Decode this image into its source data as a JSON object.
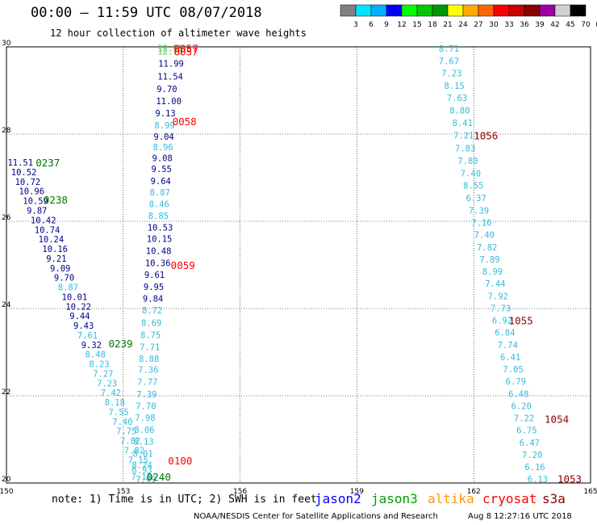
{
  "header": {
    "title": "00:00 – 11:59 UTC 08/07/2018",
    "subtitle": "12 hour collection of altimeter wave heights"
  },
  "colorbar": {
    "colors": [
      "#808080",
      "#00e5ff",
      "#00b0ff",
      "#0000ff",
      "#00ff00",
      "#00c800",
      "#009600",
      "#ffff00",
      "#ffaa00",
      "#ff6600",
      "#ff0000",
      "#c80000",
      "#8b0000",
      "#a000a0",
      "#d0d0d0",
      "#000000"
    ],
    "labels": [
      "3",
      "6",
      "9",
      "12",
      "15",
      "18",
      "21",
      "24",
      "27",
      "30",
      "33",
      "36",
      "39",
      "42",
      "45",
      "70",
      "(ft)"
    ]
  },
  "map_data": {
    "lon_range": [
      150,
      165
    ],
    "lat_range": [
      20,
      30
    ],
    "x_ticks": [
      "150",
      "153",
      "156",
      "159",
      "162",
      "165"
    ],
    "y_ticks": [
      "20",
      "22",
      "24",
      "26",
      "28",
      "30"
    ],
    "x_tick_values": [
      150,
      153,
      156,
      159,
      162,
      165
    ],
    "y_tick_values": [
      20,
      22,
      24,
      26,
      28,
      30
    ],
    "colors": {
      "navy": "#00008b",
      "cyan": "#33bbdd",
      "green": "#4ccc4c",
      "red": "#ff0000",
      "darkred": "#8b0000",
      "darkgreen": "#007700"
    },
    "wave_heights": [
      {
        "lon": 153.88,
        "lat": 29.97,
        "value": "12.93",
        "color": "green"
      },
      {
        "lon": 153.88,
        "lat": 29.9,
        "value": "12.73",
        "color": "green"
      },
      {
        "lon": 153.9,
        "lat": 29.62,
        "value": "11.99",
        "color": "navy"
      },
      {
        "lon": 153.88,
        "lat": 29.32,
        "value": "11.54",
        "color": "navy"
      },
      {
        "lon": 153.86,
        "lat": 29.04,
        "value": "9.70",
        "color": "navy"
      },
      {
        "lon": 153.84,
        "lat": 28.76,
        "value": "11.00",
        "color": "navy"
      },
      {
        "lon": 153.82,
        "lat": 28.48,
        "value": "9.13",
        "color": "navy"
      },
      {
        "lon": 153.8,
        "lat": 28.2,
        "value": "8.99",
        "color": "cyan"
      },
      {
        "lon": 153.78,
        "lat": 27.94,
        "value": "9.04",
        "color": "navy"
      },
      {
        "lon": 153.76,
        "lat": 27.7,
        "value": "8.96",
        "color": "cyan"
      },
      {
        "lon": 153.74,
        "lat": 27.45,
        "value": "9.08",
        "color": "navy"
      },
      {
        "lon": 153.72,
        "lat": 27.2,
        "value": "9.55",
        "color": "navy"
      },
      {
        "lon": 153.7,
        "lat": 26.93,
        "value": "9.64",
        "color": "navy"
      },
      {
        "lon": 153.68,
        "lat": 26.67,
        "value": "8.87",
        "color": "cyan"
      },
      {
        "lon": 153.66,
        "lat": 26.4,
        "value": "8.46",
        "color": "cyan"
      },
      {
        "lon": 153.64,
        "lat": 26.13,
        "value": "8.85",
        "color": "cyan"
      },
      {
        "lon": 153.62,
        "lat": 25.86,
        "value": "10.53",
        "color": "navy"
      },
      {
        "lon": 153.6,
        "lat": 25.6,
        "value": "10.15",
        "color": "navy"
      },
      {
        "lon": 153.58,
        "lat": 25.32,
        "value": "10.48",
        "color": "navy"
      },
      {
        "lon": 153.56,
        "lat": 25.05,
        "value": "10.36",
        "color": "navy"
      },
      {
        "lon": 153.54,
        "lat": 24.78,
        "value": "9.61",
        "color": "navy"
      },
      {
        "lon": 153.52,
        "lat": 24.5,
        "value": "9.95",
        "color": "navy"
      },
      {
        "lon": 153.5,
        "lat": 24.23,
        "value": "9.84",
        "color": "navy"
      },
      {
        "lon": 153.48,
        "lat": 23.96,
        "value": "8.72",
        "color": "cyan"
      },
      {
        "lon": 153.46,
        "lat": 23.68,
        "value": "8.69",
        "color": "cyan"
      },
      {
        "lon": 153.44,
        "lat": 23.4,
        "value": "8.75",
        "color": "cyan"
      },
      {
        "lon": 153.42,
        "lat": 23.12,
        "value": "7.71",
        "color": "cyan"
      },
      {
        "lon": 153.4,
        "lat": 22.85,
        "value": "8.88",
        "color": "cyan"
      },
      {
        "lon": 153.38,
        "lat": 22.6,
        "value": "7.36",
        "color": "cyan"
      },
      {
        "lon": 153.36,
        "lat": 22.32,
        "value": "7.77",
        "color": "cyan"
      },
      {
        "lon": 153.34,
        "lat": 22.04,
        "value": "7.39",
        "color": "cyan"
      },
      {
        "lon": 153.32,
        "lat": 21.77,
        "value": "7.70",
        "color": "cyan"
      },
      {
        "lon": 153.3,
        "lat": 21.5,
        "value": "7.98",
        "color": "cyan"
      },
      {
        "lon": 153.28,
        "lat": 21.22,
        "value": "8.06",
        "color": "cyan"
      },
      {
        "lon": 153.26,
        "lat": 20.95,
        "value": "8.13",
        "color": "cyan"
      },
      {
        "lon": 153.24,
        "lat": 20.68,
        "value": "8.01",
        "color": "cyan"
      },
      {
        "lon": 153.22,
        "lat": 20.42,
        "value": "8.24",
        "color": "cyan"
      },
      {
        "lon": 153.2,
        "lat": 20.15,
        "value": "7.13",
        "color": "cyan"
      },
      {
        "lon": 150.03,
        "lat": 27.35,
        "value": "11.51",
        "color": "navy"
      },
      {
        "lon": 150.12,
        "lat": 27.13,
        "value": "10.52",
        "color": "navy"
      },
      {
        "lon": 150.22,
        "lat": 26.91,
        "value": "10.72",
        "color": "navy"
      },
      {
        "lon": 150.32,
        "lat": 26.69,
        "value": "10.96",
        "color": "navy"
      },
      {
        "lon": 150.42,
        "lat": 26.47,
        "value": "10.59",
        "color": "navy"
      },
      {
        "lon": 150.52,
        "lat": 26.25,
        "value": "9.87",
        "color": "navy"
      },
      {
        "lon": 150.62,
        "lat": 26.03,
        "value": "10.42",
        "color": "navy"
      },
      {
        "lon": 150.72,
        "lat": 25.81,
        "value": "10.74",
        "color": "navy"
      },
      {
        "lon": 150.82,
        "lat": 25.59,
        "value": "10.24",
        "color": "navy"
      },
      {
        "lon": 150.92,
        "lat": 25.37,
        "value": "10.16",
        "color": "navy"
      },
      {
        "lon": 151.02,
        "lat": 25.15,
        "value": "9.21",
        "color": "navy"
      },
      {
        "lon": 151.12,
        "lat": 24.93,
        "value": "9.09",
        "color": "navy"
      },
      {
        "lon": 151.22,
        "lat": 24.71,
        "value": "9.70",
        "color": "navy"
      },
      {
        "lon": 151.32,
        "lat": 24.49,
        "value": "8.87",
        "color": "cyan"
      },
      {
        "lon": 151.42,
        "lat": 24.27,
        "value": "10.01",
        "color": "navy"
      },
      {
        "lon": 151.52,
        "lat": 24.05,
        "value": "10.22",
        "color": "navy"
      },
      {
        "lon": 151.62,
        "lat": 23.83,
        "value": "9.44",
        "color": "navy"
      },
      {
        "lon": 151.72,
        "lat": 23.61,
        "value": "9.43",
        "color": "navy"
      },
      {
        "lon": 151.82,
        "lat": 23.39,
        "value": "7.61",
        "color": "cyan"
      },
      {
        "lon": 151.92,
        "lat": 23.17,
        "value": "9.32",
        "color": "navy"
      },
      {
        "lon": 152.02,
        "lat": 22.95,
        "value": "8.48",
        "color": "cyan"
      },
      {
        "lon": 152.12,
        "lat": 22.73,
        "value": "8.23",
        "color": "cyan"
      },
      {
        "lon": 152.22,
        "lat": 22.51,
        "value": "7.27",
        "color": "cyan"
      },
      {
        "lon": 152.32,
        "lat": 22.29,
        "value": "7.23",
        "color": "cyan"
      },
      {
        "lon": 152.42,
        "lat": 22.07,
        "value": "7.42",
        "color": "cyan"
      },
      {
        "lon": 152.52,
        "lat": 21.85,
        "value": "8.18",
        "color": "cyan"
      },
      {
        "lon": 152.62,
        "lat": 21.63,
        "value": "7.55",
        "color": "cyan"
      },
      {
        "lon": 152.72,
        "lat": 21.41,
        "value": "7.40",
        "color": "cyan"
      },
      {
        "lon": 152.82,
        "lat": 21.19,
        "value": "7.75",
        "color": "cyan"
      },
      {
        "lon": 152.92,
        "lat": 20.97,
        "value": "7.82",
        "color": "cyan"
      },
      {
        "lon": 153.02,
        "lat": 20.75,
        "value": "7.82",
        "color": "cyan"
      },
      {
        "lon": 153.12,
        "lat": 20.53,
        "value": "7.15",
        "color": "cyan"
      },
      {
        "lon": 153.22,
        "lat": 20.31,
        "value": "6.93",
        "color": "cyan"
      },
      {
        "lon": 153.32,
        "lat": 20.09,
        "value": "7.09",
        "color": "cyan"
      },
      {
        "lon": 161.1,
        "lat": 29.96,
        "value": "8.71",
        "color": "cyan"
      },
      {
        "lon": 161.1,
        "lat": 29.68,
        "value": "7.67",
        "color": "cyan"
      },
      {
        "lon": 161.17,
        "lat": 29.4,
        "value": "7.23",
        "color": "cyan"
      },
      {
        "lon": 161.24,
        "lat": 29.11,
        "value": "8.15",
        "color": "cyan"
      },
      {
        "lon": 161.31,
        "lat": 28.83,
        "value": "7.63",
        "color": "cyan"
      },
      {
        "lon": 161.38,
        "lat": 28.55,
        "value": "8.80",
        "color": "cyan"
      },
      {
        "lon": 161.45,
        "lat": 28.26,
        "value": "8.41",
        "color": "cyan"
      },
      {
        "lon": 161.48,
        "lat": 27.97,
        "value": "7.21",
        "color": "cyan"
      },
      {
        "lon": 161.52,
        "lat": 27.68,
        "value": "7.83",
        "color": "cyan"
      },
      {
        "lon": 161.59,
        "lat": 27.39,
        "value": "7.80",
        "color": "cyan"
      },
      {
        "lon": 161.66,
        "lat": 27.1,
        "value": "7.40",
        "color": "cyan"
      },
      {
        "lon": 161.73,
        "lat": 26.82,
        "value": "8.55",
        "color": "cyan"
      },
      {
        "lon": 161.8,
        "lat": 26.54,
        "value": "6.37",
        "color": "cyan"
      },
      {
        "lon": 161.87,
        "lat": 26.25,
        "value": "7.39",
        "color": "cyan"
      },
      {
        "lon": 161.94,
        "lat": 25.97,
        "value": "7.10",
        "color": "cyan"
      },
      {
        "lon": 162.01,
        "lat": 25.69,
        "value": "7.40",
        "color": "cyan"
      },
      {
        "lon": 162.08,
        "lat": 25.41,
        "value": "7.82",
        "color": "cyan"
      },
      {
        "lon": 162.15,
        "lat": 25.13,
        "value": "7.89",
        "color": "cyan"
      },
      {
        "lon": 162.22,
        "lat": 24.85,
        "value": "8.99",
        "color": "cyan"
      },
      {
        "lon": 162.29,
        "lat": 24.57,
        "value": "7.44",
        "color": "cyan"
      },
      {
        "lon": 162.36,
        "lat": 24.29,
        "value": "7.92",
        "color": "cyan"
      },
      {
        "lon": 162.43,
        "lat": 24.01,
        "value": "7.73",
        "color": "cyan"
      },
      {
        "lon": 162.47,
        "lat": 23.73,
        "value": "6.92",
        "color": "cyan"
      },
      {
        "lon": 162.54,
        "lat": 23.45,
        "value": "6.84",
        "color": "cyan"
      },
      {
        "lon": 162.61,
        "lat": 23.17,
        "value": "7.74",
        "color": "cyan"
      },
      {
        "lon": 162.68,
        "lat": 22.89,
        "value": "6.41",
        "color": "cyan"
      },
      {
        "lon": 162.75,
        "lat": 22.61,
        "value": "7.05",
        "color": "cyan"
      },
      {
        "lon": 162.82,
        "lat": 22.33,
        "value": "6.79",
        "color": "cyan"
      },
      {
        "lon": 162.89,
        "lat": 22.05,
        "value": "6.48",
        "color": "cyan"
      },
      {
        "lon": 162.96,
        "lat": 21.77,
        "value": "6.20",
        "color": "cyan"
      },
      {
        "lon": 163.03,
        "lat": 21.49,
        "value": "7.22",
        "color": "cyan"
      },
      {
        "lon": 163.1,
        "lat": 21.21,
        "value": "6.75",
        "color": "cyan"
      },
      {
        "lon": 163.17,
        "lat": 20.93,
        "value": "6.47",
        "color": "cyan"
      },
      {
        "lon": 163.24,
        "lat": 20.65,
        "value": "7.20",
        "color": "cyan"
      },
      {
        "lon": 163.31,
        "lat": 20.37,
        "value": "6.16",
        "color": "cyan"
      },
      {
        "lon": 163.38,
        "lat": 20.09,
        "value": "6.13",
        "color": "cyan"
      }
    ],
    "pass_times": [
      {
        "lon": 154.3,
        "lat": 29.97,
        "value": "0057",
        "color": "red"
      },
      {
        "lon": 154.3,
        "lat": 29.9,
        "value": "0057",
        "color": "red"
      },
      {
        "lon": 154.26,
        "lat": 28.3,
        "value": "0058",
        "color": "red"
      },
      {
        "lon": 154.22,
        "lat": 25.0,
        "value": "0059",
        "color": "red"
      },
      {
        "lon": 154.15,
        "lat": 20.52,
        "value": "0100",
        "color": "red"
      },
      {
        "lon": 150.75,
        "lat": 27.35,
        "value": "0237",
        "color": "darkgreen"
      },
      {
        "lon": 150.95,
        "lat": 26.5,
        "value": "0238",
        "color": "darkgreen"
      },
      {
        "lon": 152.62,
        "lat": 23.2,
        "value": "0239",
        "color": "darkgreen"
      },
      {
        "lon": 153.6,
        "lat": 20.15,
        "value": "0240",
        "color": "darkgreen"
      },
      {
        "lon": 162.0,
        "lat": 27.97,
        "value": "1056",
        "color": "darkred"
      },
      {
        "lon": 162.9,
        "lat": 23.73,
        "value": "1055",
        "color": "darkred"
      },
      {
        "lon": 163.82,
        "lat": 21.47,
        "value": "1054",
        "color": "darkred"
      },
      {
        "lon": 164.15,
        "lat": 20.1,
        "value": "1053",
        "color": "darkred"
      }
    ]
  },
  "notes": {
    "note": "note: 1) Time is in UTC; 2) SWH is in feet",
    "footer": "NOAA/NESDIS Center for Satellite Applications and Research",
    "date": "Aug  8 12:27:16 UTC 2018"
  },
  "legend": [
    {
      "label": "jason2",
      "color": "#0000ff"
    },
    {
      "label": "jason3",
      "color": "#00a000"
    },
    {
      "label": "altika",
      "color": "#ff9900"
    },
    {
      "label": "cryosat",
      "color": "#ff0000"
    },
    {
      "label": "s3a",
      "color": "#8b0000"
    }
  ]
}
